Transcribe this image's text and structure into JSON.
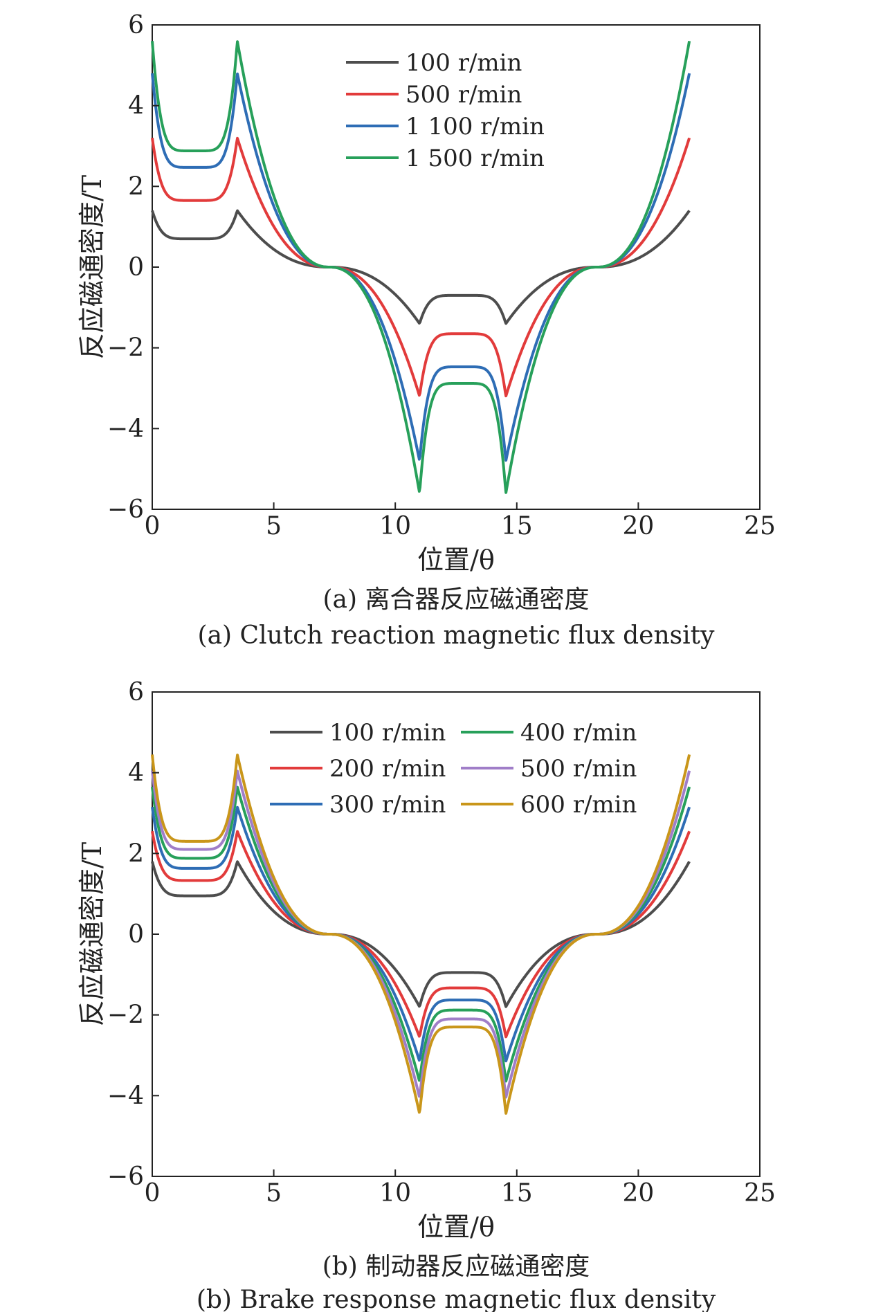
{
  "chart_data": [
    {
      "type": "line",
      "xlabel": "位置/θ",
      "ylabel": "反应磁通密度/T",
      "xlim": [
        0,
        25
      ],
      "ylim": [
        -6,
        6
      ],
      "xticks": [
        0,
        5,
        10,
        15,
        20,
        25
      ],
      "yticks": [
        -6,
        -4,
        -2,
        0,
        2,
        4,
        6
      ],
      "xtick_labels": [
        "0",
        "5",
        "10",
        "15",
        "20",
        "25"
      ],
      "ytick_labels": [
        "−6",
        "−4",
        "−2",
        "0",
        "2",
        "4",
        "6"
      ],
      "grid": false,
      "legend_position": "top-center",
      "caption_cn": "(a) 离合器反应磁通密度",
      "caption_en": "(a) Clutch reaction magnetic flux density",
      "series": [
        {
          "name": "100 r/min",
          "color": "#4d4d4d",
          "A": 1.4,
          "B": 0.7
        },
        {
          "name": "500 r/min",
          "color": "#e23b3b",
          "A": 3.2,
          "B": 1.65
        },
        {
          "name": "1 100 r/min",
          "color": "#2e6db5",
          "A": 4.8,
          "B": 2.47
        },
        {
          "name": "1 500 r/min",
          "color": "#27a05a",
          "A": 5.6,
          "B": 2.88
        }
      ]
    },
    {
      "type": "line",
      "xlabel": "位置/θ",
      "ylabel": "反应磁通密度/T",
      "xlim": [
        0,
        25
      ],
      "ylim": [
        -6,
        6
      ],
      "xticks": [
        0,
        5,
        10,
        15,
        20,
        25
      ],
      "yticks": [
        -6,
        -4,
        -2,
        0,
        2,
        4,
        6
      ],
      "xtick_labels": [
        "0",
        "5",
        "10",
        "15",
        "20",
        "25"
      ],
      "ytick_labels": [
        "−6",
        "−4",
        "−2",
        "0",
        "2",
        "4",
        "6"
      ],
      "grid": false,
      "legend_position": "top-center",
      "caption_cn": "(b) 制动器反应磁通密度",
      "caption_en": "(b) Brake response magnetic flux density",
      "series": [
        {
          "name": "100 r/min",
          "color": "#4d4d4d",
          "A": 1.8,
          "B": 0.95
        },
        {
          "name": "200 r/min",
          "color": "#e23b3b",
          "A": 2.55,
          "B": 1.33
        },
        {
          "name": "300 r/min",
          "color": "#2e6db5",
          "A": 3.15,
          "B": 1.63
        },
        {
          "name": "400 r/min",
          "color": "#27a05a",
          "A": 3.65,
          "B": 1.88
        },
        {
          "name": "500 r/min",
          "color": "#a07ec8",
          "A": 4.05,
          "B": 2.1
        },
        {
          "name": "600 r/min",
          "color": "#c9961a",
          "A": 4.45,
          "B": 2.3
        }
      ]
    }
  ]
}
